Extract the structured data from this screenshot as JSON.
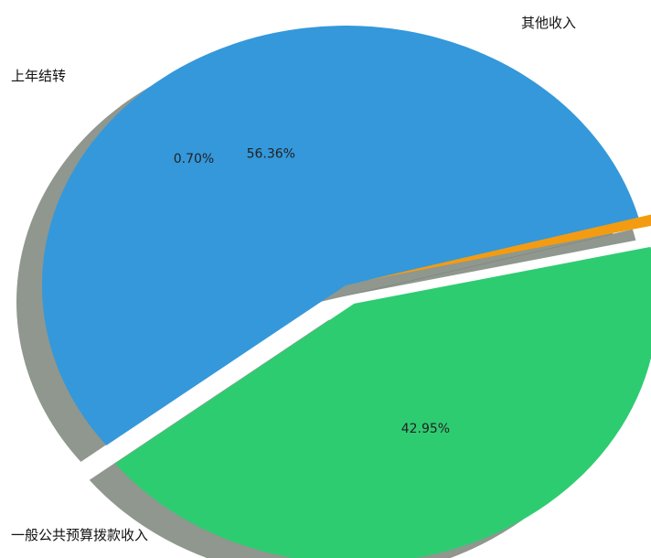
{
  "chart_data": {
    "type": "pie",
    "title": "",
    "slices": [
      {
        "label": "一般公共预算拨款收入",
        "value": 56.36,
        "value_label": "56.36%",
        "color": "#3498db"
      },
      {
        "label": "上年结转",
        "value": 0.7,
        "value_label": "0.70%",
        "color": "#f39c12"
      },
      {
        "label": "其他收入",
        "value": 42.95,
        "value_label": "42.95%",
        "color": "#2ecc71"
      }
    ],
    "shadow": true,
    "exploded": true,
    "legend": "none"
  }
}
